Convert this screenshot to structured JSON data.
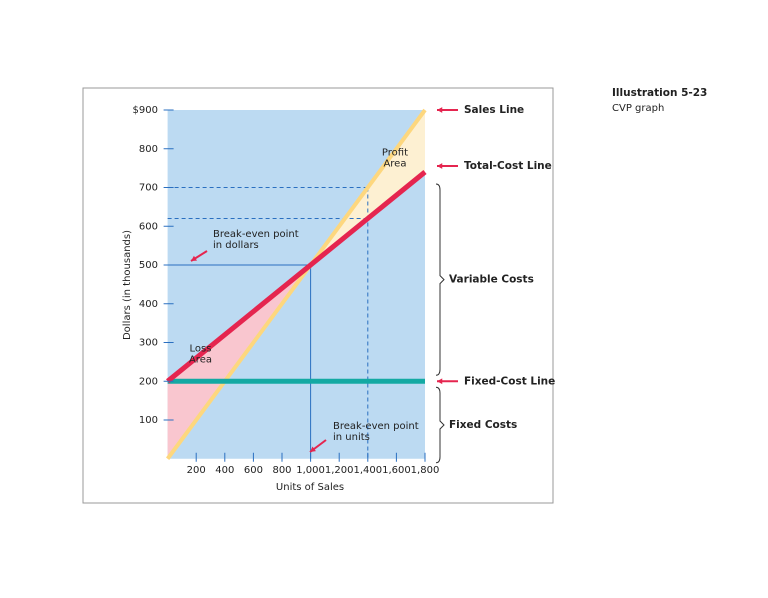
{
  "chart_data": {
    "type": "line",
    "caption": {
      "title": "Illustration 5-23",
      "subtitle": "CVP graph"
    },
    "x_label": "Units of Sales",
    "y_label": "Dollars (in thousands)",
    "xlim": [
      0,
      1800
    ],
    "ylim": [
      0,
      900
    ],
    "xticks": [
      200,
      400,
      600,
      800,
      {
        "value": 1000,
        "label": "1,000"
      },
      {
        "value": 1200,
        "label": "1,200"
      },
      {
        "value": 1400,
        "label": "1,400"
      },
      {
        "value": 1600,
        "label": "1,600"
      },
      {
        "value": 1800,
        "label": "1,800"
      }
    ],
    "yticks": [
      100,
      200,
      300,
      400,
      500,
      600,
      700,
      800,
      {
        "value": 900,
        "label": "$900"
      }
    ],
    "x": [
      0,
      1800
    ],
    "series": [
      {
        "name": "Sales Line",
        "color": "#fdd77e",
        "values": [
          0,
          900
        ]
      },
      {
        "name": "Total-Cost Line",
        "color": "#e5254f",
        "values": [
          200,
          740
        ]
      },
      {
        "name": "Fixed-Cost Line",
        "color": "#14a9a3",
        "values": [
          200,
          200
        ]
      }
    ],
    "loss_area": [
      "Loss",
      "Area"
    ],
    "profit_area": [
      "Profit",
      "Area"
    ],
    "break_even": {
      "x": 1000,
      "y": 500,
      "dollars_label": [
        "Break-even point",
        "in dollars"
      ],
      "units_label": [
        "Break-even point",
        "in units"
      ]
    },
    "reference": {
      "x": 1400,
      "revenue": 700,
      "cost": 620
    },
    "braces": {
      "variable": "Variable Costs",
      "fixed": "Fixed Costs"
    },
    "background": "#bcdaf2"
  }
}
